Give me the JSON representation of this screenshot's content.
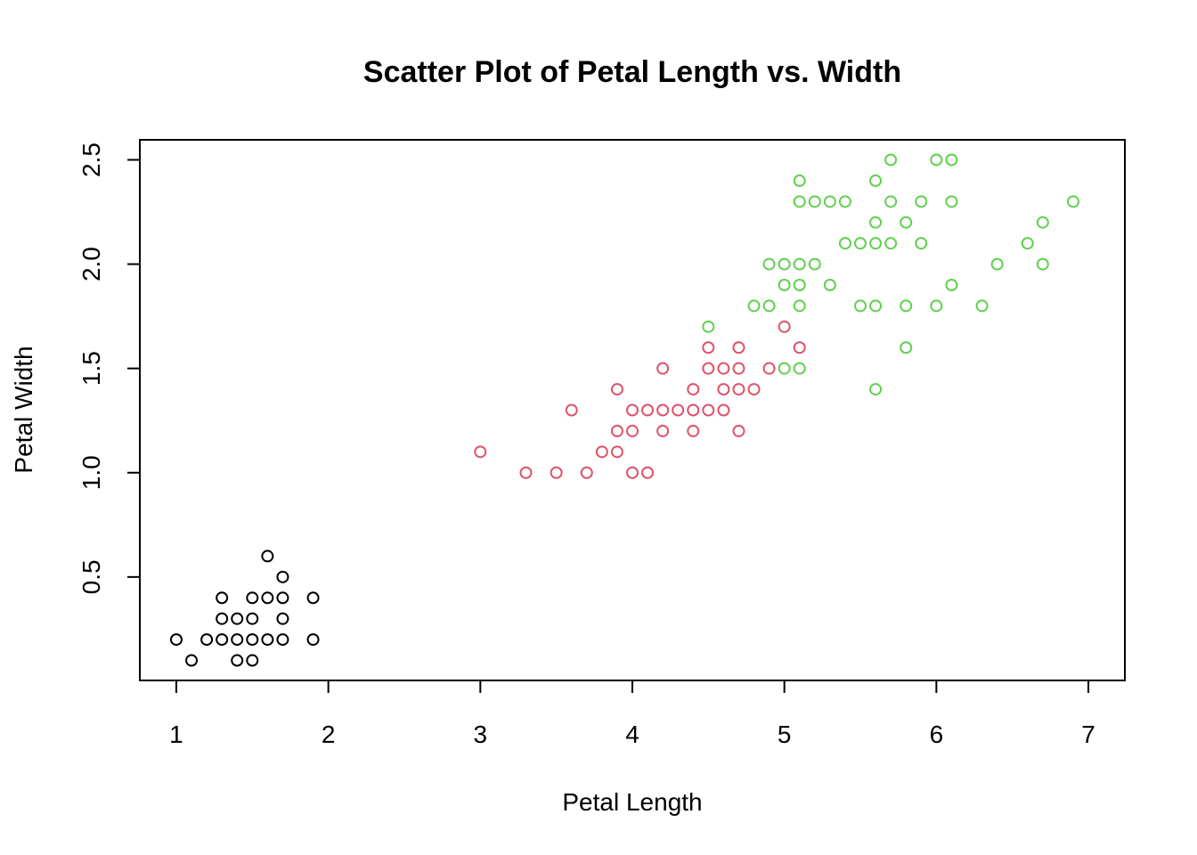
{
  "chart_data": {
    "type": "scatter",
    "title": "Scatter Plot of Petal Length vs. Width",
    "xlabel": "Petal Length",
    "ylabel": "Petal Width",
    "xlim": [
      0.76,
      7.24
    ],
    "ylim": [
      0.004,
      2.596
    ],
    "x_ticks": [
      "1",
      "2",
      "3",
      "4",
      "5",
      "6",
      "7"
    ],
    "y_ticks": [
      "0.5",
      "1.0",
      "1.5",
      "2.0",
      "2.5"
    ],
    "grid": false,
    "legend": "none",
    "marker": "open-circle",
    "colors": [
      "#000000",
      "#DF536B",
      "#61D04F"
    ],
    "series": [
      {
        "color": "#000000",
        "points": [
          [
            1.0,
            0.2
          ],
          [
            1.1,
            0.1
          ],
          [
            1.2,
            0.2
          ],
          [
            1.3,
            0.2
          ],
          [
            1.3,
            0.3
          ],
          [
            1.3,
            0.4
          ],
          [
            1.4,
            0.1
          ],
          [
            1.4,
            0.2
          ],
          [
            1.4,
            0.3
          ],
          [
            1.5,
            0.1
          ],
          [
            1.5,
            0.2
          ],
          [
            1.5,
            0.3
          ],
          [
            1.5,
            0.4
          ],
          [
            1.6,
            0.2
          ],
          [
            1.6,
            0.4
          ],
          [
            1.6,
            0.6
          ],
          [
            1.7,
            0.2
          ],
          [
            1.7,
            0.3
          ],
          [
            1.7,
            0.4
          ],
          [
            1.7,
            0.5
          ],
          [
            1.9,
            0.2
          ],
          [
            1.9,
            0.4
          ]
        ]
      },
      {
        "color": "#DF536B",
        "points": [
          [
            3.0,
            1.1
          ],
          [
            3.3,
            1.0
          ],
          [
            3.5,
            1.0
          ],
          [
            3.6,
            1.3
          ],
          [
            3.7,
            1.0
          ],
          [
            3.8,
            1.1
          ],
          [
            3.9,
            1.1
          ],
          [
            3.9,
            1.2
          ],
          [
            3.9,
            1.4
          ],
          [
            4.0,
            1.0
          ],
          [
            4.0,
            1.2
          ],
          [
            4.0,
            1.3
          ],
          [
            4.1,
            1.0
          ],
          [
            4.1,
            1.3
          ],
          [
            4.2,
            1.2
          ],
          [
            4.2,
            1.3
          ],
          [
            4.2,
            1.5
          ],
          [
            4.3,
            1.3
          ],
          [
            4.4,
            1.2
          ],
          [
            4.4,
            1.3
          ],
          [
            4.4,
            1.4
          ],
          [
            4.5,
            1.3
          ],
          [
            4.5,
            1.5
          ],
          [
            4.5,
            1.6
          ],
          [
            4.6,
            1.3
          ],
          [
            4.6,
            1.4
          ],
          [
            4.6,
            1.5
          ],
          [
            4.7,
            1.2
          ],
          [
            4.7,
            1.4
          ],
          [
            4.7,
            1.5
          ],
          [
            4.7,
            1.6
          ],
          [
            4.8,
            1.4
          ],
          [
            4.9,
            1.5
          ],
          [
            5.0,
            1.7
          ],
          [
            5.1,
            1.6
          ]
        ]
      },
      {
        "color": "#61D04F",
        "points": [
          [
            4.5,
            1.7
          ],
          [
            4.8,
            1.8
          ],
          [
            4.9,
            1.8
          ],
          [
            4.9,
            2.0
          ],
          [
            5.0,
            1.5
          ],
          [
            5.0,
            1.9
          ],
          [
            5.0,
            2.0
          ],
          [
            5.1,
            1.5
          ],
          [
            5.1,
            1.8
          ],
          [
            5.1,
            1.9
          ],
          [
            5.1,
            2.0
          ],
          [
            5.1,
            2.3
          ],
          [
            5.1,
            2.4
          ],
          [
            5.2,
            2.0
          ],
          [
            5.2,
            2.3
          ],
          [
            5.3,
            1.9
          ],
          [
            5.3,
            2.3
          ],
          [
            5.4,
            2.1
          ],
          [
            5.4,
            2.3
          ],
          [
            5.5,
            1.8
          ],
          [
            5.5,
            2.1
          ],
          [
            5.6,
            1.4
          ],
          [
            5.6,
            1.8
          ],
          [
            5.6,
            2.1
          ],
          [
            5.6,
            2.2
          ],
          [
            5.6,
            2.4
          ],
          [
            5.7,
            2.1
          ],
          [
            5.7,
            2.3
          ],
          [
            5.7,
            2.5
          ],
          [
            5.8,
            1.6
          ],
          [
            5.8,
            1.8
          ],
          [
            5.8,
            2.2
          ],
          [
            5.9,
            2.1
          ],
          [
            5.9,
            2.3
          ],
          [
            6.0,
            1.8
          ],
          [
            6.0,
            2.5
          ],
          [
            6.1,
            1.9
          ],
          [
            6.1,
            2.3
          ],
          [
            6.1,
            2.5
          ],
          [
            6.3,
            1.8
          ],
          [
            6.4,
            2.0
          ],
          [
            6.6,
            2.1
          ],
          [
            6.7,
            2.0
          ],
          [
            6.7,
            2.2
          ],
          [
            6.9,
            2.3
          ]
        ]
      }
    ]
  }
}
